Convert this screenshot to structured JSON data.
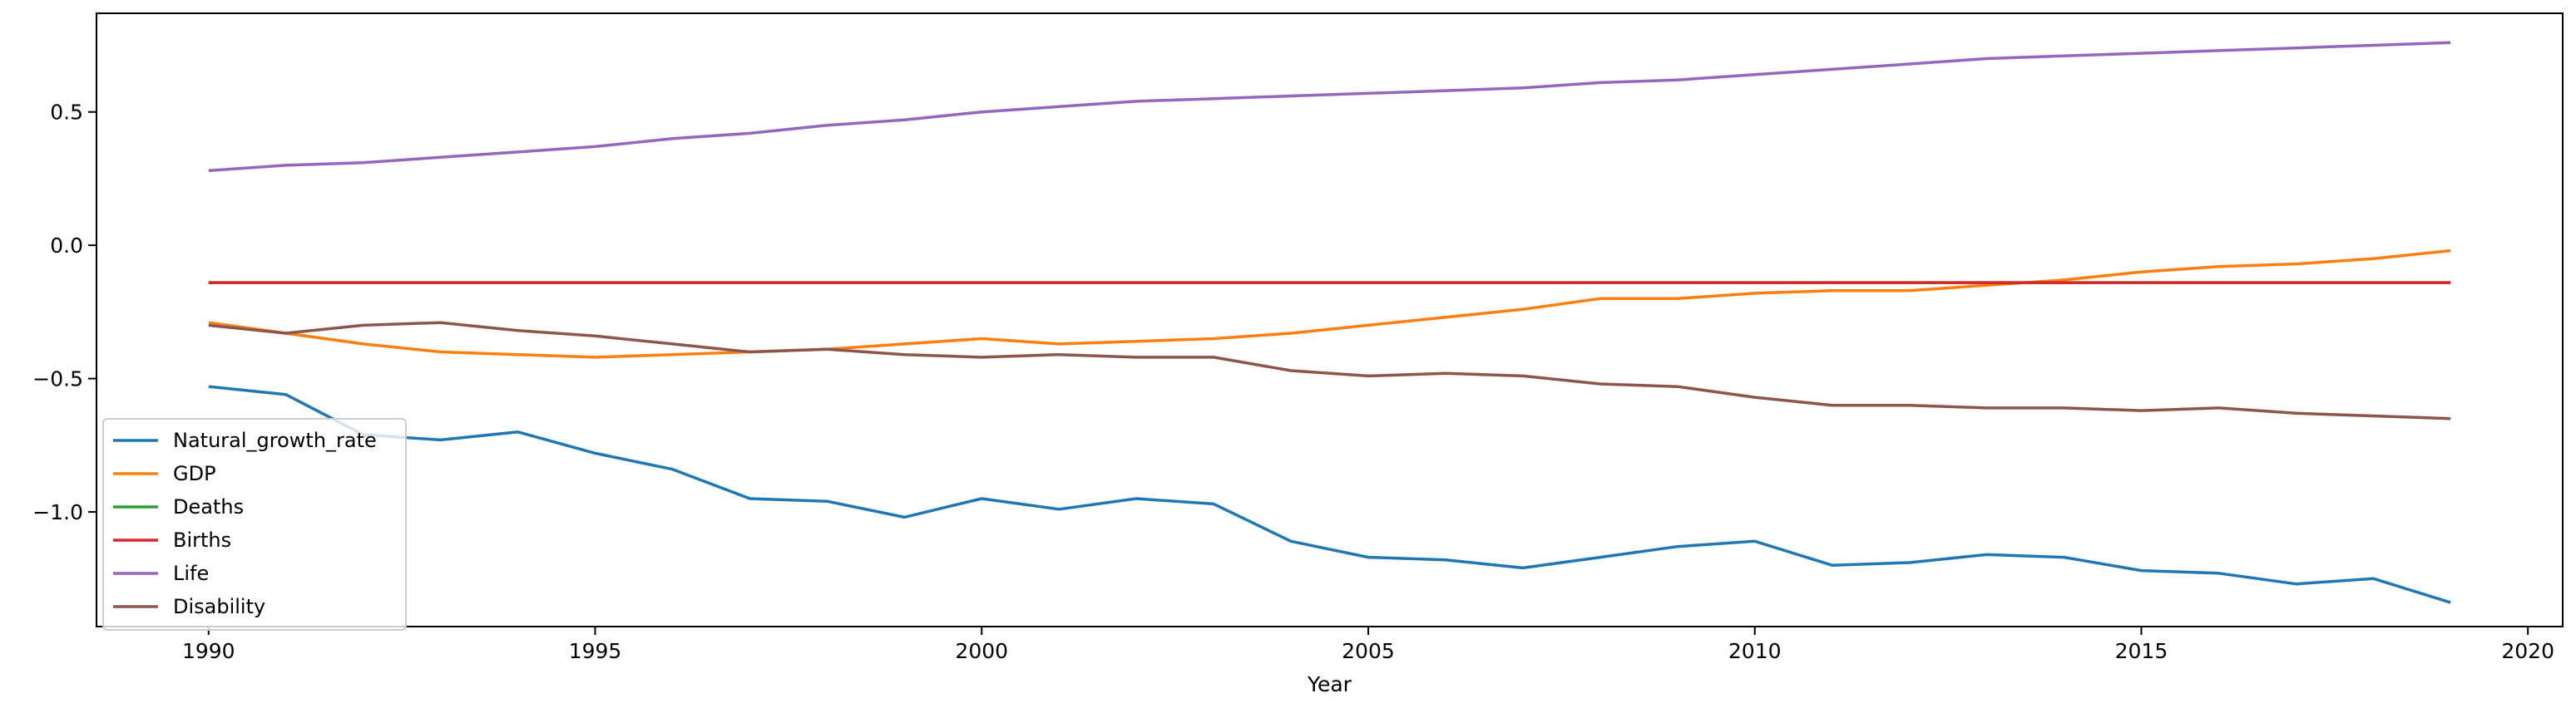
{
  "chart_data": {
    "type": "line",
    "title": "",
    "xlabel": "Year",
    "ylabel": "",
    "xlim": [
      1988.55,
      2020.45
    ],
    "ylim": [
      -1.43,
      0.87
    ],
    "xticks": [
      1990,
      1995,
      2000,
      2005,
      2010,
      2015,
      2020
    ],
    "yticks": [
      0.5,
      0.0,
      -0.5,
      -1.0
    ],
    "ytick_labels": [
      "0.5",
      "0.0",
      "−0.5",
      "−1.0"
    ],
    "grid": false,
    "legend_position": "lower-left",
    "x": [
      1990,
      1991,
      1992,
      1993,
      1994,
      1995,
      1996,
      1997,
      1998,
      1999,
      2000,
      2001,
      2002,
      2003,
      2004,
      2005,
      2006,
      2007,
      2008,
      2009,
      2010,
      2011,
      2012,
      2013,
      2014,
      2015,
      2016,
      2017,
      2018,
      2019
    ],
    "series": [
      {
        "name": "Natural_growth_rate",
        "color": "#1f77b4",
        "values": [
          -0.53,
          -0.56,
          -0.71,
          -0.73,
          -0.7,
          -0.78,
          -0.84,
          -0.95,
          -0.96,
          -1.02,
          -0.95,
          -0.99,
          -0.95,
          -0.97,
          -1.11,
          -1.17,
          -1.18,
          -1.21,
          -1.17,
          -1.13,
          -1.11,
          -1.2,
          -1.19,
          -1.16,
          -1.17,
          -1.22,
          -1.23,
          -1.27,
          -1.25,
          -1.34
        ]
      },
      {
        "name": "GDP",
        "color": "#ff7f0e",
        "values": [
          -0.29,
          -0.33,
          -0.37,
          -0.4,
          -0.41,
          -0.42,
          -0.41,
          -0.4,
          -0.39,
          -0.37,
          -0.35,
          -0.37,
          -0.36,
          -0.35,
          -0.33,
          -0.3,
          -0.27,
          -0.24,
          -0.2,
          -0.2,
          -0.18,
          -0.17,
          -0.17,
          -0.15,
          -0.13,
          -0.1,
          -0.08,
          -0.07,
          -0.05,
          -0.02
        ]
      },
      {
        "name": "Deaths",
        "color": "#2ca02c",
        "values": [
          -0.14,
          -0.14,
          -0.14,
          -0.14,
          -0.14,
          -0.14,
          -0.14,
          -0.14,
          -0.14,
          -0.14,
          -0.14,
          -0.14,
          -0.14,
          -0.14,
          -0.14,
          -0.14,
          -0.14,
          -0.14,
          -0.14,
          -0.14,
          -0.14,
          -0.14,
          -0.14,
          -0.14,
          -0.14,
          -0.14,
          -0.14,
          -0.14,
          -0.14,
          -0.14
        ]
      },
      {
        "name": "Births",
        "color": "#d62728",
        "values": [
          -0.14,
          -0.14,
          -0.14,
          -0.14,
          -0.14,
          -0.14,
          -0.14,
          -0.14,
          -0.14,
          -0.14,
          -0.14,
          -0.14,
          -0.14,
          -0.14,
          -0.14,
          -0.14,
          -0.14,
          -0.14,
          -0.14,
          -0.14,
          -0.14,
          -0.14,
          -0.14,
          -0.14,
          -0.14,
          -0.14,
          -0.14,
          -0.14,
          -0.14,
          -0.14
        ]
      },
      {
        "name": "Life",
        "color": "#9467bd",
        "values": [
          0.28,
          0.3,
          0.31,
          0.33,
          0.35,
          0.37,
          0.4,
          0.42,
          0.45,
          0.47,
          0.5,
          0.52,
          0.54,
          0.55,
          0.56,
          0.57,
          0.58,
          0.59,
          0.61,
          0.62,
          0.64,
          0.66,
          0.68,
          0.7,
          0.71,
          0.72,
          0.73,
          0.74,
          0.75,
          0.76
        ]
      },
      {
        "name": "Disability",
        "color": "#8c564b",
        "values": [
          -0.3,
          -0.33,
          -0.3,
          -0.29,
          -0.32,
          -0.34,
          -0.37,
          -0.4,
          -0.39,
          -0.41,
          -0.42,
          -0.41,
          -0.42,
          -0.42,
          -0.47,
          -0.49,
          -0.48,
          -0.49,
          -0.52,
          -0.53,
          -0.57,
          -0.6,
          -0.6,
          -0.61,
          -0.61,
          -0.62,
          -0.61,
          -0.63,
          -0.64,
          -0.65
        ]
      }
    ]
  }
}
